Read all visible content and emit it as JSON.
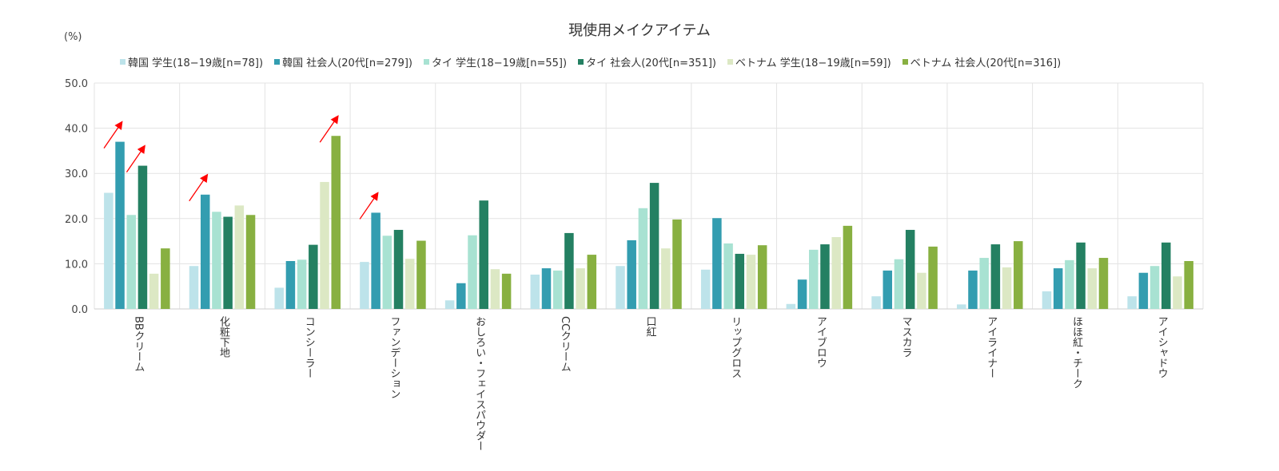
{
  "chart_data": {
    "type": "bar",
    "title": "現使用メイクアイテム",
    "ylabel": "(%)",
    "xlabel": "",
    "ylim": [
      0,
      50
    ],
    "yticks": [
      "0.0",
      "10.0",
      "20.0",
      "30.0",
      "40.0",
      "50.0"
    ],
    "grid": true,
    "legend_position": "top",
    "categories": [
      "BBクリーム",
      "化粧下地",
      "コンシーラー",
      "ファンデーション",
      "おしろい・フェイスパウダー",
      "CCクリーム",
      "口紅",
      "リップグロス",
      "アイブロウ",
      "マスカラ",
      "アイライナー",
      "ほほ紅・チーク",
      "アイシャドウ"
    ],
    "series": [
      {
        "name": "韓国 学生(18−19歳[n=78])",
        "color": "#bde3ea",
        "values": [
          25.7,
          9.5,
          4.7,
          10.4,
          1.9,
          7.6,
          9.5,
          8.7,
          1.1,
          2.8,
          1.0,
          3.9,
          2.8
        ]
      },
      {
        "name": "韓国 社会人(20代[n=279])",
        "color": "#339db0",
        "values": [
          37.0,
          25.3,
          10.6,
          21.3,
          5.7,
          9.0,
          15.2,
          20.1,
          6.5,
          8.5,
          8.5,
          9.0,
          8.0
        ]
      },
      {
        "name": "タイ 学生(18−19歳[n=55])",
        "color": "#a8e2d2",
        "values": [
          20.8,
          21.5,
          10.9,
          16.2,
          16.3,
          8.5,
          22.3,
          14.5,
          13.1,
          11.0,
          11.3,
          10.8,
          9.5
        ]
      },
      {
        "name": "タイ 社会人(20代[n=351])",
        "color": "#248062",
        "values": [
          31.7,
          20.4,
          14.2,
          17.5,
          24.0,
          16.8,
          27.9,
          12.2,
          14.3,
          17.5,
          14.3,
          14.7,
          14.7
        ]
      },
      {
        "name": "ベトナム 学生(18−19歳[n=59])",
        "color": "#dce8c4",
        "values": [
          7.8,
          22.9,
          28.1,
          11.1,
          8.8,
          9.0,
          13.4,
          12.0,
          15.9,
          8.0,
          9.2,
          9.0,
          7.2
        ]
      },
      {
        "name": "ベトナム 社会人(20代[n=316])",
        "color": "#88b041",
        "values": [
          13.4,
          20.8,
          38.3,
          15.1,
          7.8,
          12.0,
          19.8,
          14.1,
          18.4,
          13.8,
          15.0,
          11.3,
          10.6
        ]
      }
    ],
    "annotations": {
      "color": "#ff0000",
      "arrows": [
        {
          "category": "BBクリーム",
          "series": "韓国 社会人(20代[n=279])"
        },
        {
          "category": "BBクリーム",
          "series": "タイ 社会人(20代[n=351])"
        },
        {
          "category": "化粧下地",
          "series": "韓国 社会人(20代[n=279])"
        },
        {
          "category": "コンシーラー",
          "series": "ベトナム 社会人(20代[n=316])"
        },
        {
          "category": "ファンデーション",
          "series": "韓国 社会人(20代[n=279])"
        }
      ]
    }
  }
}
